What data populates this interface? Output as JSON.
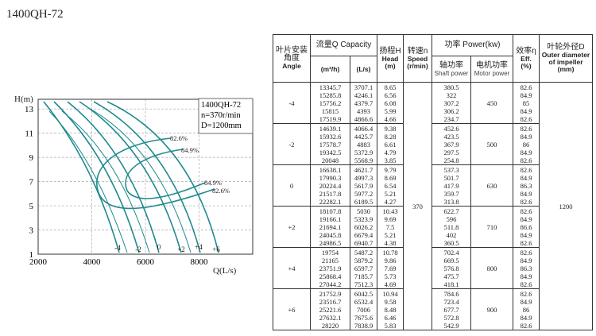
{
  "performance_chart": {
    "title": "1400QH-72",
    "y_label": "H(m)",
    "x_label": "Q(L/s)",
    "xlim": [
      2000,
      10000
    ],
    "ylim": [
      1,
      13.8
    ],
    "xticks": [
      2000,
      4000,
      6000,
      8000
    ],
    "yticks": [
      1,
      3,
      5,
      7,
      9,
      11,
      13
    ],
    "info": [
      "1400QH-72",
      "n=370r/min",
      "D=1200mm"
    ],
    "angle_labels": [
      "-4",
      "-2",
      "0",
      "+2",
      "+4",
      "+6"
    ],
    "efficiency_labels": [
      "82.6%",
      "84.9%",
      "84.9%",
      "82.6%"
    ]
  },
  "table": {
    "headers": {
      "angle_cn": "叶片安装角度",
      "angle_en": "Angle",
      "capacity": "流量Q Capacity",
      "capacity_m3h": "(m³/h)",
      "capacity_ls": "(L/s)",
      "head_cn": "扬程H",
      "head_en": "Head",
      "head_unit": "(m)",
      "speed_cn": "转速n",
      "speed_en": "Speed",
      "speed_unit": "(r/min)",
      "power": "功率 Power(kw)",
      "shaft_cn": "轴功率",
      "shaft_en": "Shaft power",
      "motor_cn": "电机功率",
      "motor_en": "Motor power",
      "eff_cn": "效率η",
      "eff_en": "Eff.",
      "eff_unit": "(%)",
      "dia_cn": "叶轮外径D",
      "dia_en": "Outer diameter of impeller",
      "dia_unit": "(mm)"
    },
    "speed": 370,
    "outer_diameter": 1200,
    "groups": [
      {
        "angle": "-4",
        "capacity_m3h": [
          13345.7,
          15285.8,
          15756.2,
          15815,
          17519.9
        ],
        "capacity_ls": [
          3707.1,
          4246.1,
          4379.7,
          4393,
          4866.6
        ],
        "head": [
          8.65,
          6.56,
          6.08,
          5.99,
          4.66
        ],
        "shaft_power": [
          380.5,
          322,
          307.2,
          306.2,
          234.7
        ],
        "motor_power": 450,
        "efficiency": [
          82.6,
          84.9,
          85,
          84.9,
          82.6
        ]
      },
      {
        "angle": "-2",
        "capacity_m3h": [
          14639.1,
          15932.6,
          17578.7,
          19342.5,
          20048
        ],
        "capacity_ls": [
          4066.4,
          4425.7,
          4883,
          5372.9,
          5568.9
        ],
        "head": [
          9.38,
          8.28,
          6.61,
          4.79,
          3.85
        ],
        "shaft_power": [
          452.6,
          423.5,
          367.9,
          297.5,
          254.8
        ],
        "motor_power": 500,
        "efficiency": [
          82.6,
          84.9,
          86,
          84.9,
          82.6
        ]
      },
      {
        "angle": "0",
        "capacity_m3h": [
          16638.1,
          17990.3,
          20224.4,
          21517.8,
          22282.1
        ],
        "capacity_ls": [
          4621.7,
          4997.3,
          5617.9,
          5977.2,
          6189.5
        ],
        "head": [
          9.79,
          8.69,
          6.54,
          5.21,
          4.27
        ],
        "shaft_power": [
          537.3,
          501.7,
          417.9,
          359.7,
          313.8
        ],
        "motor_power": 630,
        "efficiency": [
          82.6,
          84.9,
          86.3,
          84.9,
          82.6
        ]
      },
      {
        "angle": "+2",
        "capacity_m3h": [
          18107.8,
          19166.1,
          21694.1,
          24045.8,
          24986.5
        ],
        "capacity_ls": [
          5030,
          5323.9,
          6026.2,
          6679.4,
          6940.7
        ],
        "head": [
          10.43,
          9.69,
          7.5,
          5.21,
          4.38
        ],
        "shaft_power": [
          622.7,
          596,
          511.8,
          402,
          360.5
        ],
        "motor_power": 710,
        "efficiency": [
          82.6,
          84.9,
          86.6,
          84.9,
          82.6
        ]
      },
      {
        "angle": "+4",
        "capacity_m3h": [
          19754,
          21165,
          23751.9,
          25868.4,
          27044.2
        ],
        "capacity_ls": [
          5487.2,
          5879.2,
          6597.7,
          7185.7,
          7512.3
        ],
        "head": [
          10.78,
          9.86,
          7.69,
          5.73,
          4.69
        ],
        "shaft_power": [
          702.4,
          669.5,
          576.8,
          475.7,
          418.1
        ],
        "motor_power": 800,
        "efficiency": [
          82.6,
          84.9,
          86.3,
          84.9,
          82.6
        ]
      },
      {
        "angle": "+6",
        "capacity_m3h": [
          21752.9,
          23516.7,
          25221.6,
          27632.1,
          28220
        ],
        "capacity_ls": [
          6042.5,
          6532.4,
          7006,
          7675.6,
          7838.9
        ],
        "head": [
          10.94,
          9.58,
          8.48,
          6.46,
          5.83
        ],
        "shaft_power": [
          784.6,
          723.4,
          677.7,
          572.8,
          542.9
        ],
        "motor_power": 900,
        "efficiency": [
          82.6,
          84.9,
          86,
          84.9,
          82.6
        ]
      }
    ]
  }
}
